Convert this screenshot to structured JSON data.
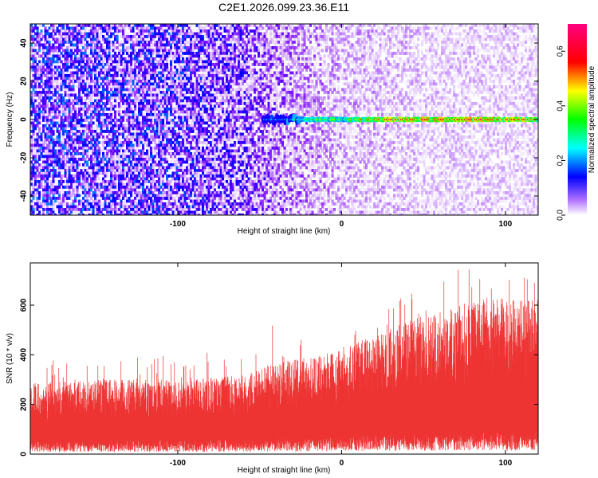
{
  "title": "C2E1.2026.099.23.36.E11",
  "chart_data": [
    {
      "type": "heatmap",
      "xlabel": "Height of straight line (km)",
      "ylabel": "Frequency (Hz)",
      "xlim": [
        -190,
        120
      ],
      "ylim": [
        -50,
        50
      ],
      "x_ticks": [
        -100,
        0,
        100
      ],
      "x_tick_labels": [
        "-100",
        "0",
        "100"
      ],
      "y_ticks": [
        -40,
        -20,
        0,
        20,
        40
      ],
      "y_tick_labels": [
        "-40",
        "-20",
        "0",
        "20",
        "40"
      ],
      "colorbar": {
        "label": "Normalized spectral amplitude",
        "range": [
          0,
          0.7
        ],
        "ticks": [
          0.0,
          0.2,
          0.4,
          0.6
        ],
        "tick_labels": [
          "0.0",
          "0.2",
          "0.4",
          "0.6"
        ],
        "colors": [
          "#ffffff",
          "#7b00ff",
          "#0000ff",
          "#00ffff",
          "#00ff00",
          "#ffff00",
          "#ff0000",
          "#ff0080"
        ]
      },
      "background_amplitude": [
        {
          "x": -190,
          "value": 0.12
        },
        {
          "x": -100,
          "value": 0.11
        },
        {
          "x": -60,
          "value": 0.09
        },
        {
          "x": -40,
          "value": 0.06
        },
        {
          "x": 0,
          "value": 0.04
        },
        {
          "x": 60,
          "value": 0.03
        },
        {
          "x": 120,
          "value": 0.03
        }
      ],
      "signal_line": {
        "frequency": 0,
        "points": [
          {
            "x": -48,
            "value": 0.25
          },
          {
            "x": -35,
            "value": 0.3
          },
          {
            "x": -20,
            "value": 0.35
          },
          {
            "x": -10,
            "value": 0.45
          },
          {
            "x": 0,
            "value": 0.4
          },
          {
            "x": 20,
            "value": 0.55
          },
          {
            "x": 60,
            "value": 0.62
          },
          {
            "x": 100,
            "value": 0.6
          },
          {
            "x": 120,
            "value": 0.55
          }
        ]
      }
    },
    {
      "type": "area",
      "xlabel": "Height of straight line (km)",
      "ylabel": "SNR (10 * v/v)",
      "xlim": [
        -190,
        120
      ],
      "ylim": [
        0,
        770
      ],
      "x_ticks": [
        -100,
        0,
        100
      ],
      "x_tick_labels": [
        "-100",
        "0",
        "100"
      ],
      "y_ticks": [
        0,
        200,
        400,
        600
      ],
      "y_tick_labels": [
        "0",
        "200",
        "400",
        "600"
      ],
      "color": "#ee3333",
      "envelope": {
        "x": [
          -190,
          -150,
          -100,
          -60,
          -45,
          -30,
          -10,
          0,
          20,
          50,
          80,
          100,
          120
        ],
        "low": [
          60,
          60,
          60,
          65,
          70,
          70,
          75,
          80,
          85,
          90,
          95,
          95,
          95
        ],
        "high": [
          290,
          300,
          300,
          320,
          360,
          380,
          400,
          420,
          480,
          560,
          620,
          630,
          620
        ],
        "peak": [
          380,
          390,
          410,
          430,
          540,
          470,
          490,
          510,
          560,
          690,
          770,
          700,
          720
        ]
      }
    }
  ]
}
